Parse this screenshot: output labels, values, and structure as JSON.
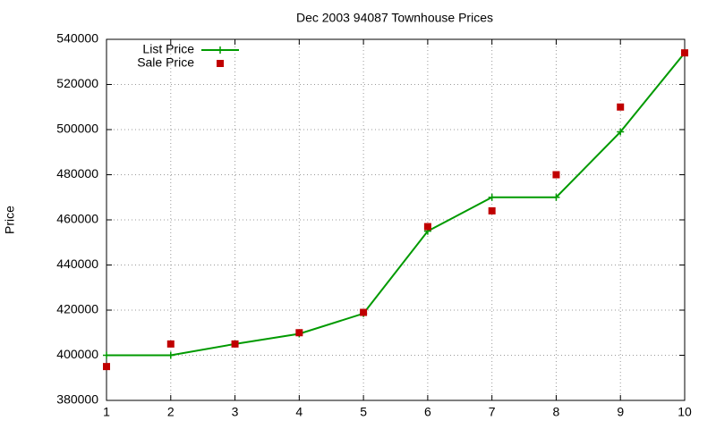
{
  "chart_data": {
    "type": "line",
    "title": "Dec 2003 94087 Townhouse Prices",
    "y_label": "Price",
    "x": [
      1,
      2,
      3,
      4,
      5,
      6,
      7,
      8,
      9,
      10
    ],
    "series": [
      {
        "name": "List Price",
        "color": "#009a00",
        "mode": "lines+markers",
        "marker": "plus",
        "values": [
          400000,
          400000,
          405000,
          409500,
          418500,
          455000,
          470000,
          470000,
          499000,
          534000
        ]
      },
      {
        "name": "Sale Price",
        "color": "#c00000",
        "mode": "markers",
        "marker": "square",
        "values": [
          395000,
          405000,
          405000,
          410000,
          419000,
          457000,
          464000,
          480000,
          510000,
          534000
        ]
      }
    ],
    "xlim": [
      1,
      10
    ],
    "xticks": [
      1,
      2,
      3,
      4,
      5,
      6,
      7,
      8,
      9,
      10
    ],
    "ylim": [
      380000,
      540000
    ],
    "yticks": [
      380000,
      400000,
      420000,
      440000,
      460000,
      480000,
      500000,
      520000,
      540000
    ],
    "grid": true,
    "legend": "top-left"
  }
}
